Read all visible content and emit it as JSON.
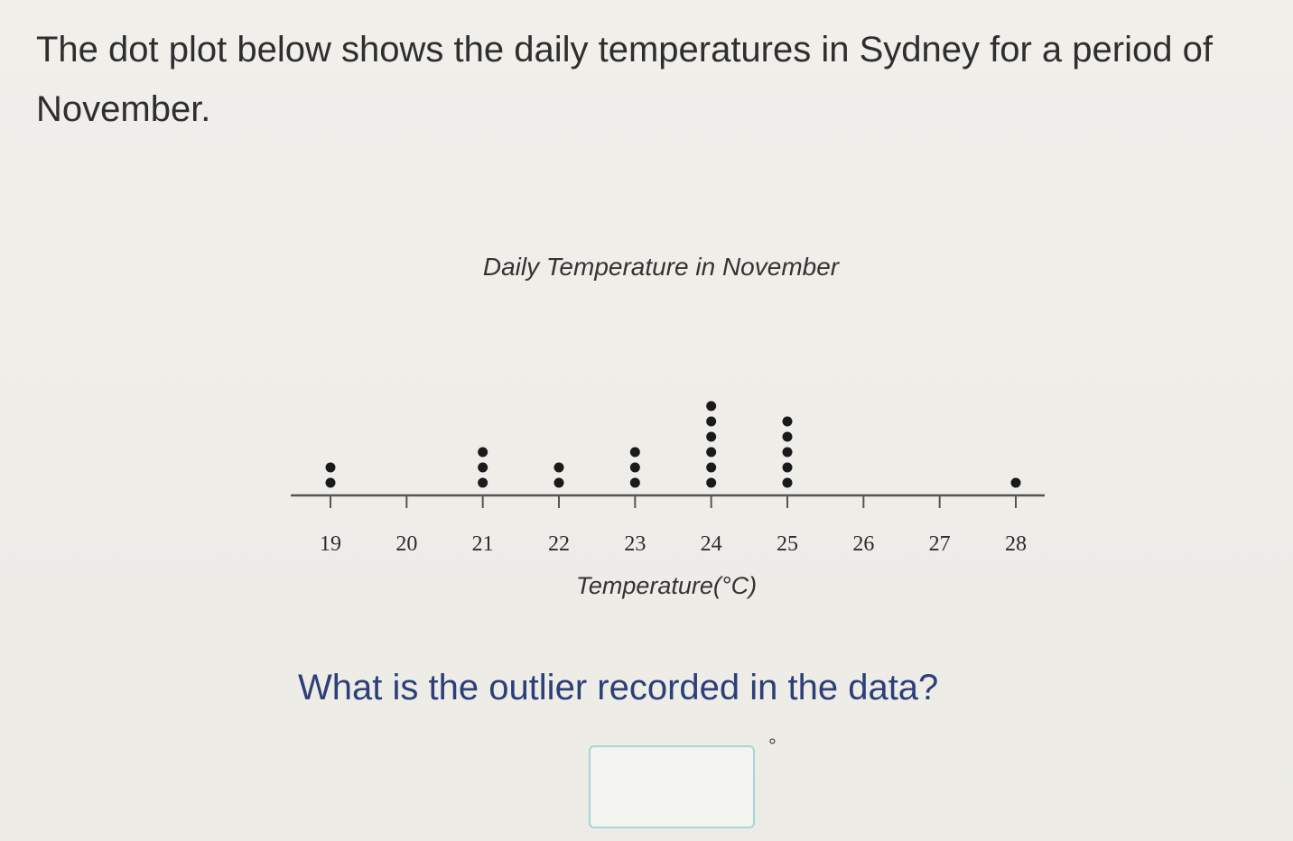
{
  "intro_text": "The dot plot below shows the daily temperatures in Sydney for a period of November.",
  "question": {
    "text": "What is the outlier recorded in the data?",
    "answer_value": "",
    "unit_mark": "°"
  },
  "chart_data": {
    "type": "scatter",
    "subtype": "dot_plot",
    "title": "Daily Temperature in November",
    "xlabel": "Temperature(°C)",
    "ylabel": "",
    "xlim": [
      19,
      28
    ],
    "ticks": [
      "19",
      "20",
      "21",
      "22",
      "23",
      "24",
      "25",
      "26",
      "27",
      "28"
    ],
    "x": [
      19,
      20,
      21,
      22,
      23,
      24,
      25,
      26,
      27,
      28
    ],
    "counts": [
      2,
      0,
      3,
      2,
      3,
      6,
      5,
      0,
      0,
      1
    ],
    "grid": false,
    "legend": "none",
    "colors": {
      "dot": "#1a1a1a",
      "axis": "#555555"
    }
  }
}
